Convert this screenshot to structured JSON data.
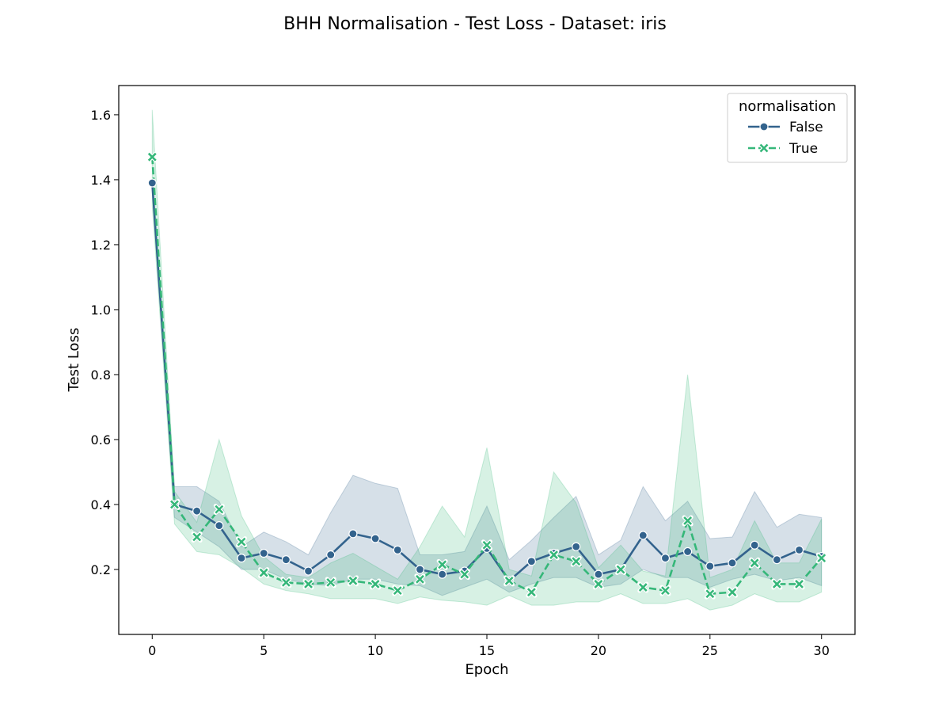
{
  "chart_data": {
    "type": "line",
    "title": "BHH Normalisation - Test Loss - Dataset: iris",
    "xlabel": "Epoch",
    "ylabel": "Test Loss",
    "xlim": [
      -1.5,
      31.5
    ],
    "ylim": [
      0.0,
      1.69
    ],
    "xticks": [
      0,
      5,
      10,
      15,
      20,
      25,
      30
    ],
    "yticks": [
      0.2,
      0.4,
      0.6,
      0.8,
      1.0,
      1.2,
      1.4,
      1.6
    ],
    "ytick_labels": [
      "0.2",
      "0.4",
      "0.6",
      "0.8",
      "1.0",
      "1.2",
      "1.4",
      "1.6"
    ],
    "grid": false,
    "legend": {
      "title": "normalisation",
      "placement": "top-right"
    },
    "x": [
      0,
      1,
      2,
      3,
      4,
      5,
      6,
      7,
      8,
      9,
      10,
      11,
      12,
      13,
      14,
      15,
      16,
      17,
      18,
      19,
      20,
      21,
      22,
      23,
      24,
      25,
      26,
      27,
      28,
      29,
      30
    ],
    "series": [
      {
        "name": "False",
        "color": "#33638d",
        "marker": "circle",
        "linestyle": "solid",
        "values": [
          1.39,
          0.4,
          0.38,
          0.335,
          0.235,
          0.25,
          0.23,
          0.195,
          0.245,
          0.31,
          0.295,
          0.26,
          0.2,
          0.185,
          0.195,
          0.265,
          0.165,
          0.225,
          0.25,
          0.27,
          0.185,
          0.2,
          0.305,
          0.235,
          0.255,
          0.21,
          0.22,
          0.275,
          0.23,
          0.26,
          0.24
        ],
        "upper": [
          1.39,
          0.455,
          0.455,
          0.41,
          0.27,
          0.315,
          0.285,
          0.245,
          0.375,
          0.49,
          0.465,
          0.45,
          0.245,
          0.245,
          0.255,
          0.395,
          0.23,
          0.29,
          0.36,
          0.425,
          0.245,
          0.29,
          0.455,
          0.35,
          0.41,
          0.295,
          0.3,
          0.44,
          0.33,
          0.37,
          0.36
        ],
        "lower": [
          1.39,
          0.36,
          0.315,
          0.27,
          0.2,
          0.2,
          0.17,
          0.155,
          0.15,
          0.17,
          0.17,
          0.155,
          0.15,
          0.12,
          0.145,
          0.17,
          0.13,
          0.155,
          0.175,
          0.175,
          0.145,
          0.155,
          0.2,
          0.175,
          0.175,
          0.145,
          0.17,
          0.185,
          0.165,
          0.175,
          0.15
        ]
      },
      {
        "name": "True",
        "color": "#35b779",
        "marker": "x",
        "linestyle": "dashed",
        "values": [
          1.47,
          0.4,
          0.3,
          0.385,
          0.285,
          0.19,
          0.16,
          0.155,
          0.16,
          0.165,
          0.155,
          0.135,
          0.17,
          0.215,
          0.185,
          0.275,
          0.165,
          0.13,
          0.245,
          0.225,
          0.155,
          0.2,
          0.145,
          0.135,
          0.35,
          0.125,
          0.13,
          0.22,
          0.155,
          0.155,
          0.235
        ],
        "upper": [
          1.615,
          0.44,
          0.345,
          0.6,
          0.365,
          0.24,
          0.185,
          0.175,
          0.22,
          0.25,
          0.21,
          0.17,
          0.27,
          0.395,
          0.3,
          0.575,
          0.2,
          0.18,
          0.5,
          0.405,
          0.205,
          0.275,
          0.195,
          0.18,
          0.8,
          0.175,
          0.2,
          0.35,
          0.22,
          0.22,
          0.355
        ],
        "lower": [
          1.32,
          0.34,
          0.255,
          0.245,
          0.205,
          0.155,
          0.135,
          0.125,
          0.11,
          0.11,
          0.11,
          0.095,
          0.115,
          0.105,
          0.1,
          0.09,
          0.12,
          0.09,
          0.09,
          0.1,
          0.1,
          0.125,
          0.095,
          0.095,
          0.11,
          0.075,
          0.09,
          0.125,
          0.1,
          0.1,
          0.13
        ]
      }
    ]
  }
}
